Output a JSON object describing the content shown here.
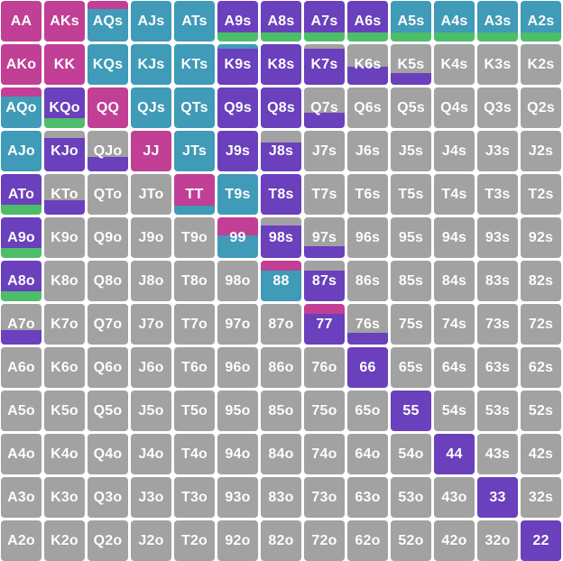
{
  "colors": {
    "magenta": "#c23f96",
    "blue": "#3f9bb8",
    "purple": "#6a40bd",
    "green": "#4ebd6a",
    "gray": "#a2a2a2"
  },
  "hands": [
    [
      "AA",
      "AKs",
      "AQs",
      "AJs",
      "ATs",
      "A9s",
      "A8s",
      "A7s",
      "A6s",
      "A5s",
      "A4s",
      "A3s",
      "A2s"
    ],
    [
      "AKo",
      "KK",
      "KQs",
      "KJs",
      "KTs",
      "K9s",
      "K8s",
      "K7s",
      "K6s",
      "K5s",
      "K4s",
      "K3s",
      "K2s"
    ],
    [
      "AQo",
      "KQo",
      "QQ",
      "QJs",
      "QTs",
      "Q9s",
      "Q8s",
      "Q7s",
      "Q6s",
      "Q5s",
      "Q4s",
      "Q3s",
      "Q2s"
    ],
    [
      "AJo",
      "KJo",
      "QJo",
      "JJ",
      "JTs",
      "J9s",
      "J8s",
      "J7s",
      "J6s",
      "J5s",
      "J4s",
      "J3s",
      "J2s"
    ],
    [
      "ATo",
      "KTo",
      "QTo",
      "JTo",
      "TT",
      "T9s",
      "T8s",
      "T7s",
      "T6s",
      "T5s",
      "T4s",
      "T3s",
      "T2s"
    ],
    [
      "A9o",
      "K9o",
      "Q9o",
      "J9o",
      "T9o",
      "99",
      "98s",
      "97s",
      "96s",
      "95s",
      "94s",
      "93s",
      "92s"
    ],
    [
      "A8o",
      "K8o",
      "Q8o",
      "J8o",
      "T8o",
      "98o",
      "88",
      "87s",
      "86s",
      "85s",
      "84s",
      "83s",
      "82s"
    ],
    [
      "A7o",
      "K7o",
      "Q7o",
      "J7o",
      "T7o",
      "97o",
      "87o",
      "77",
      "76s",
      "75s",
      "74s",
      "73s",
      "72s"
    ],
    [
      "A6o",
      "K6o",
      "Q6o",
      "J6o",
      "T6o",
      "96o",
      "86o",
      "76o",
      "66",
      "65s",
      "64s",
      "63s",
      "62s"
    ],
    [
      "A5o",
      "K5o",
      "Q5o",
      "J5o",
      "T5o",
      "95o",
      "85o",
      "75o",
      "65o",
      "55",
      "54s",
      "53s",
      "52s"
    ],
    [
      "A4o",
      "K4o",
      "Q4o",
      "J4o",
      "T4o",
      "94o",
      "84o",
      "74o",
      "64o",
      "54o",
      "44",
      "43s",
      "42s"
    ],
    [
      "A3o",
      "K3o",
      "Q3o",
      "J3o",
      "T3o",
      "93o",
      "83o",
      "73o",
      "63o",
      "53o",
      "43o",
      "33",
      "32s"
    ],
    [
      "A2o",
      "K2o",
      "Q2o",
      "J2o",
      "T2o",
      "92o",
      "82o",
      "72o",
      "62o",
      "52o",
      "42o",
      "32o",
      "22"
    ]
  ],
  "mixes": {
    "AA": [
      [
        "magenta",
        1
      ]
    ],
    "AKs": [
      [
        "magenta",
        1
      ]
    ],
    "AQs": [
      [
        "magenta",
        0.2
      ],
      [
        "blue",
        0.8
      ]
    ],
    "AJs": [
      [
        "blue",
        1
      ]
    ],
    "ATs": [
      [
        "blue",
        1
      ]
    ],
    "A9s": [
      [
        "purple",
        0.78
      ],
      [
        "green",
        0.22
      ]
    ],
    "A8s": [
      [
        "purple",
        0.78
      ],
      [
        "green",
        0.22
      ]
    ],
    "A7s": [
      [
        "purple",
        0.78
      ],
      [
        "green",
        0.22
      ]
    ],
    "A6s": [
      [
        "purple",
        0.78
      ],
      [
        "green",
        0.22
      ]
    ],
    "A5s": [
      [
        "blue",
        0.78
      ],
      [
        "green",
        0.22
      ]
    ],
    "A4s": [
      [
        "blue",
        0.78
      ],
      [
        "green",
        0.22
      ]
    ],
    "A3s": [
      [
        "blue",
        0.78
      ],
      [
        "green",
        0.22
      ]
    ],
    "A2s": [
      [
        "blue",
        0.78
      ],
      [
        "green",
        0.22
      ]
    ],
    "AKo": [
      [
        "magenta",
        1
      ]
    ],
    "KK": [
      [
        "magenta",
        1
      ]
    ],
    "KQs": [
      [
        "blue",
        1
      ]
    ],
    "KJs": [
      [
        "blue",
        1
      ]
    ],
    "KTs": [
      [
        "blue",
        1
      ]
    ],
    "K9s": [
      [
        "blue",
        0.12
      ],
      [
        "purple",
        0.88
      ]
    ],
    "K8s": [
      [
        "purple",
        1
      ]
    ],
    "K7s": [
      [
        "gray",
        0.12
      ],
      [
        "purple",
        0.88
      ]
    ],
    "K6s": [
      [
        "gray",
        0.55
      ],
      [
        "purple",
        0.45
      ]
    ],
    "K5s": [
      [
        "gray",
        0.7
      ],
      [
        "purple",
        0.3
      ]
    ],
    "AQo": [
      [
        "magenta",
        0.22
      ],
      [
        "blue",
        0.78
      ]
    ],
    "KQo": [
      [
        "purple",
        0.75
      ],
      [
        "green",
        0.25
      ]
    ],
    "QQ": [
      [
        "magenta",
        1
      ]
    ],
    "QJs": [
      [
        "blue",
        1
      ]
    ],
    "QTs": [
      [
        "blue",
        1
      ]
    ],
    "Q9s": [
      [
        "purple",
        1
      ]
    ],
    "Q8s": [
      [
        "purple",
        1
      ]
    ],
    "Q7s": [
      [
        "gray",
        0.62
      ],
      [
        "purple",
        0.38
      ]
    ],
    "AJo": [
      [
        "blue",
        1
      ]
    ],
    "KJo": [
      [
        "gray",
        0.18
      ],
      [
        "purple",
        0.82
      ]
    ],
    "QJo": [
      [
        "gray",
        0.65
      ],
      [
        "purple",
        0.35
      ]
    ],
    "JJ": [
      [
        "magenta",
        1
      ]
    ],
    "JTs": [
      [
        "blue",
        1
      ]
    ],
    "J9s": [
      [
        "purple",
        1
      ]
    ],
    "J8s": [
      [
        "gray",
        0.28
      ],
      [
        "purple",
        0.72
      ]
    ],
    "ATo": [
      [
        "purple",
        0.75
      ],
      [
        "green",
        0.25
      ]
    ],
    "KTo": [
      [
        "gray",
        0.65
      ],
      [
        "purple",
        0.35
      ]
    ],
    "TT": [
      [
        "magenta",
        0.78
      ],
      [
        "blue",
        0.22
      ]
    ],
    "T9s": [
      [
        "blue",
        1
      ]
    ],
    "T8s": [
      [
        "purple",
        1
      ]
    ],
    "A9o": [
      [
        "purple",
        0.75
      ],
      [
        "green",
        0.25
      ]
    ],
    "99": [
      [
        "magenta",
        0.45
      ],
      [
        "blue",
        0.55
      ]
    ],
    "98s": [
      [
        "gray",
        0.2
      ],
      [
        "purple",
        0.8
      ]
    ],
    "97s": [
      [
        "gray",
        0.7
      ],
      [
        "purple",
        0.3
      ]
    ],
    "A8o": [
      [
        "purple",
        0.75
      ],
      [
        "green",
        0.25
      ]
    ],
    "88": [
      [
        "magenta",
        0.25
      ],
      [
        "blue",
        0.75
      ]
    ],
    "87s": [
      [
        "gray",
        0.25
      ],
      [
        "purple",
        0.75
      ]
    ],
    "A7o": [
      [
        "gray",
        0.65
      ],
      [
        "purple",
        0.35
      ]
    ],
    "77": [
      [
        "magenta",
        0.25
      ],
      [
        "purple",
        0.75
      ]
    ],
    "76s": [
      [
        "gray",
        0.7
      ],
      [
        "purple",
        0.3
      ]
    ],
    "66": [
      [
        "purple",
        1
      ]
    ],
    "55": [
      [
        "purple",
        1
      ]
    ],
    "44": [
      [
        "purple",
        1
      ]
    ],
    "33": [
      [
        "purple",
        1
      ]
    ],
    "22": [
      [
        "purple",
        1
      ]
    ]
  }
}
